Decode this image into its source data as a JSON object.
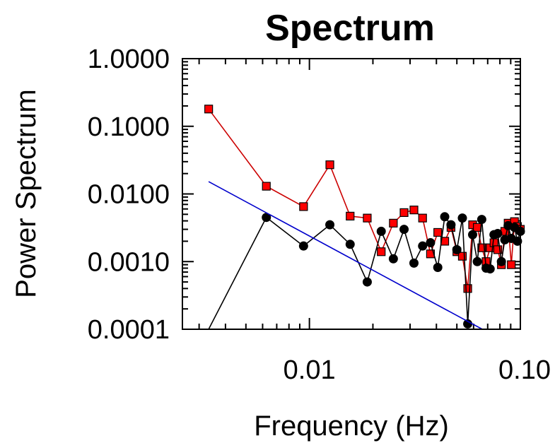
{
  "chart_data": {
    "type": "line",
    "title": "Spectrum",
    "xlabel": "Frequency (Hz)",
    "ylabel": "Power Spectrum",
    "x_scale": "log",
    "y_scale": "log",
    "xlim": [
      0.0025,
      0.1
    ],
    "ylim": [
      0.0001,
      1.0
    ],
    "x_ticks": [
      {
        "value": 0.01,
        "label": "0.01"
      },
      {
        "value": 0.1,
        "label": "0.10"
      }
    ],
    "y_ticks": [
      {
        "value": 0.0001,
        "label": "0.0001"
      },
      {
        "value": 0.001,
        "label": "0.0010"
      },
      {
        "value": 0.01,
        "label": "0.0100"
      },
      {
        "value": 0.1,
        "label": "0.1000"
      },
      {
        "value": 1.0,
        "label": "1.0000"
      }
    ],
    "grid": false,
    "legend": "none",
    "series": [
      {
        "color": "#cc0000",
        "marker": "square",
        "marker_fill": "#ff0000",
        "x": [
          0.00333,
          0.00625,
          0.00938,
          0.0125,
          0.0156,
          0.0188,
          0.0219,
          0.025,
          0.0281,
          0.0313,
          0.0344,
          0.0375,
          0.0406,
          0.0438,
          0.0469,
          0.05,
          0.0531,
          0.0563,
          0.0594,
          0.0625,
          0.0656,
          0.0688,
          0.0719,
          0.075,
          0.0781,
          0.0813,
          0.0844,
          0.0875,
          0.0906,
          0.0938,
          0.0969,
          0.1
        ],
        "y": [
          0.18,
          0.013,
          0.0065,
          0.027,
          0.0047,
          0.0044,
          0.0014,
          0.0037,
          0.0053,
          0.0058,
          0.0044,
          0.0013,
          0.0027,
          0.002,
          0.0032,
          0.0014,
          0.0012,
          0.0004,
          0.0035,
          0.0032,
          0.0016,
          0.001,
          0.0016,
          0.0019,
          0.0015,
          0.0009,
          0.0028,
          0.0037,
          0.0009,
          0.0039,
          0.0033,
          0.003
        ]
      },
      {
        "color": "#000000",
        "marker": "circle",
        "marker_fill": "#000000",
        "x": [
          0.00333,
          0.00625,
          0.00938,
          0.0125,
          0.0156,
          0.0188,
          0.0219,
          0.025,
          0.0281,
          0.0313,
          0.0344,
          0.0375,
          0.0406,
          0.0438,
          0.0469,
          0.05,
          0.0531,
          0.0563,
          0.0594,
          0.0625,
          0.0656,
          0.0688,
          0.0719,
          0.075,
          0.0781,
          0.0813,
          0.0844,
          0.0875,
          0.0906,
          0.0938,
          0.0969,
          0.1
        ],
        "y": [
          0.0001,
          0.0045,
          0.0017,
          0.0035,
          0.0018,
          0.0005,
          0.0028,
          0.0011,
          0.003,
          0.00095,
          0.0017,
          0.0019,
          0.00082,
          0.0046,
          0.0035,
          0.0015,
          0.0044,
          0.00012,
          0.0025,
          0.001,
          0.0042,
          0.0008,
          0.00078,
          0.0025,
          0.0026,
          0.001,
          0.0021,
          0.0034,
          0.0022,
          0.0032,
          0.002,
          0.0028
        ],
        "first_point_unmarked": true
      },
      {
        "color": "#0000cc",
        "marker": "none",
        "x": [
          0.00333,
          0.066
        ],
        "y": [
          0.0152,
          0.0001
        ]
      }
    ]
  }
}
